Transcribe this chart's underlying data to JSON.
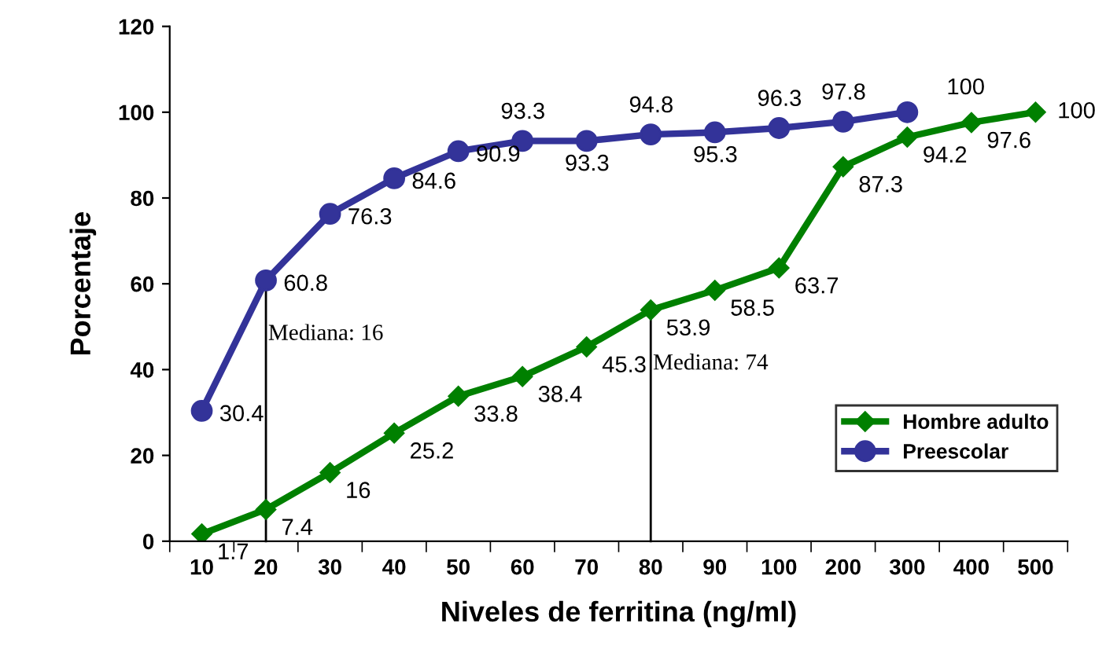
{
  "chart_data": {
    "type": "line",
    "xlabel": "Niveles de ferritina (ng/ml)",
    "ylabel": "Porcentaje",
    "categories": [
      "10",
      "20",
      "30",
      "40",
      "50",
      "60",
      "70",
      "80",
      "90",
      "100",
      "200",
      "300",
      "400",
      "500"
    ],
    "series": [
      {
        "name": "Hombre adulto",
        "color": "#008000",
        "marker": "diamond",
        "values": [
          1.7,
          7.4,
          16,
          25.2,
          33.8,
          38.4,
          45.3,
          53.9,
          58.5,
          63.7,
          87.3,
          94.2,
          97.6,
          100
        ]
      },
      {
        "name": "Preescolar",
        "color": "#333399",
        "marker": "circle",
        "values": [
          30.4,
          60.8,
          76.3,
          84.6,
          90.9,
          93.3,
          93.3,
          94.8,
          95.3,
          96.3,
          97.8,
          100,
          null,
          null
        ]
      }
    ],
    "ylim": [
      0,
      120
    ],
    "yticks": [
      0,
      20,
      40,
      60,
      80,
      100,
      120
    ],
    "annotations": [
      {
        "text": "Mediana: 16",
        "x": "20",
        "y": 60.8
      },
      {
        "text": "Mediana: 74",
        "x": "80",
        "y": 53.9
      }
    ],
    "data_labels": true,
    "legend": "right",
    "grid": false
  }
}
